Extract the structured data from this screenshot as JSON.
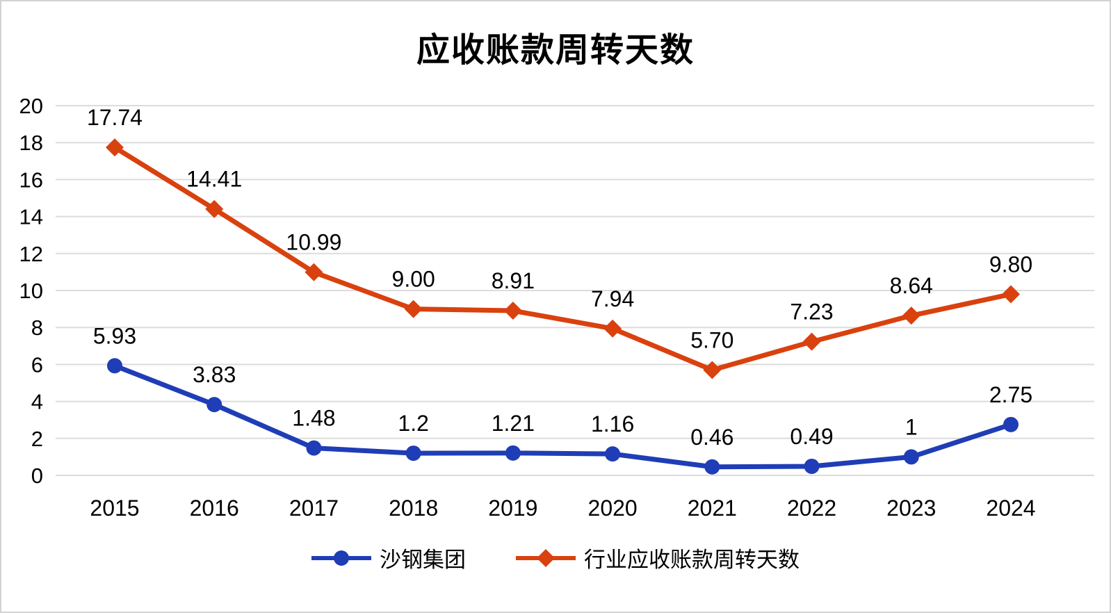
{
  "chart_data": {
    "type": "line",
    "title": "应收账款周转天数",
    "categories": [
      "2015",
      "2016",
      "2017",
      "2018",
      "2019",
      "2020",
      "2021",
      "2022",
      "2023",
      "2024"
    ],
    "series": [
      {
        "name": "沙钢集团",
        "color": "#1f3db6",
        "marker": "circle",
        "values": [
          5.93,
          3.83,
          1.48,
          1.2,
          1.21,
          1.16,
          0.46,
          0.49,
          1,
          2.75
        ],
        "labels": [
          "5.93",
          "3.83",
          "1.48",
          "1.2",
          "1.21",
          "1.16",
          "0.46",
          "0.49",
          "1",
          "2.75"
        ]
      },
      {
        "name": "行业应收账款周转天数",
        "color": "#d9410e",
        "marker": "diamond",
        "values": [
          17.74,
          14.41,
          10.99,
          9.0,
          8.91,
          7.94,
          5.7,
          7.23,
          8.64,
          9.8
        ],
        "labels": [
          "17.74",
          "14.41",
          "10.99",
          "9.00",
          "8.91",
          "7.94",
          "5.70",
          "7.23",
          "8.64",
          "9.80"
        ]
      }
    ],
    "xlabel": "",
    "ylabel": "",
    "ylim": [
      0,
      20
    ],
    "y_step": 2,
    "y_ticks": [
      "0",
      "2",
      "4",
      "6",
      "8",
      "10",
      "12",
      "14",
      "16",
      "18",
      "20"
    ],
    "grid": "on",
    "legend_position": "bottom",
    "colors": {
      "gridline": "#dcdcdc",
      "text": "#000000",
      "background": "#ffffff"
    }
  }
}
